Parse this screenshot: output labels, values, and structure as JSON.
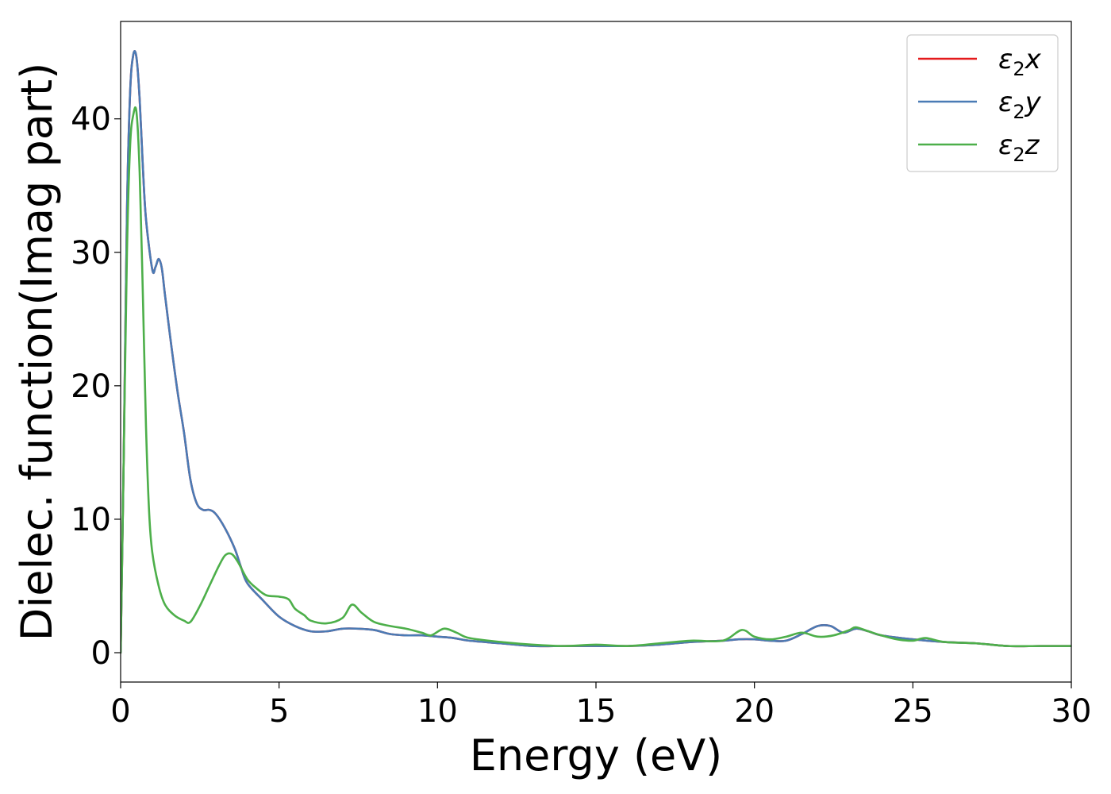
{
  "chart_data": {
    "type": "line",
    "xlabel": "Energy (eV)",
    "ylabel": "Dielec. function(Imag part)",
    "xlim": [
      0,
      30
    ],
    "ylim": [
      -2.2,
      47.3
    ],
    "xticks": [
      0,
      5,
      10,
      15,
      20,
      25,
      30
    ],
    "yticks": [
      0,
      10,
      20,
      30,
      40
    ],
    "grid": false,
    "legend_position": "top-right",
    "series": [
      {
        "name": "ε₂x",
        "legend_base": "ε",
        "legend_sub": "2",
        "legend_suffix": "x",
        "color": "#e41a1c",
        "x": [
          0,
          0.1,
          0.2,
          0.3,
          0.4,
          0.5,
          0.6,
          0.7,
          0.8,
          1.0,
          1.1,
          1.2,
          1.3,
          1.4,
          1.6,
          1.8,
          2.0,
          2.2,
          2.4,
          2.6,
          2.8,
          3.0,
          3.3,
          3.6,
          3.8,
          4.0,
          4.5,
          5.0,
          5.5,
          6.0,
          6.5,
          7.0,
          7.5,
          8.0,
          8.5,
          9.0,
          9.5,
          10.0,
          10.5,
          11.0,
          12.0,
          13.0,
          14.0,
          15.0,
          16.0,
          17.0,
          18.0,
          19.0,
          19.5,
          20.0,
          20.5,
          21.0,
          21.5,
          22.0,
          22.4,
          22.8,
          23.2,
          23.6,
          24.0,
          25.0,
          26.0,
          27.0,
          28.0,
          29.0,
          30.0
        ],
        "values": [
          0,
          15,
          33,
          42,
          44.8,
          44.6,
          41.5,
          36.5,
          32.5,
          28.7,
          28.9,
          29.5,
          28.8,
          26.8,
          23,
          19.5,
          16.5,
          13,
          11.2,
          10.7,
          10.7,
          10.4,
          9.3,
          7.8,
          6.4,
          5.2,
          3.9,
          2.7,
          2.0,
          1.6,
          1.6,
          1.8,
          1.8,
          1.7,
          1.4,
          1.3,
          1.3,
          1.2,
          1.1,
          0.9,
          0.7,
          0.5,
          0.5,
          0.5,
          0.5,
          0.6,
          0.8,
          0.9,
          1.0,
          1.0,
          0.9,
          0.9,
          1.4,
          2.0,
          2.0,
          1.5,
          1.8,
          1.6,
          1.3,
          1.0,
          0.8,
          0.7,
          0.5,
          0.5,
          0.5
        ]
      },
      {
        "name": "ε₂y",
        "legend_base": "ε",
        "legend_sub": "2",
        "legend_suffix": "y",
        "color": "#4a7bb5",
        "x": [
          0,
          0.1,
          0.2,
          0.3,
          0.4,
          0.5,
          0.6,
          0.7,
          0.8,
          1.0,
          1.1,
          1.2,
          1.3,
          1.4,
          1.6,
          1.8,
          2.0,
          2.2,
          2.4,
          2.6,
          2.8,
          3.0,
          3.3,
          3.6,
          3.8,
          4.0,
          4.5,
          5.0,
          5.5,
          6.0,
          6.5,
          7.0,
          7.5,
          8.0,
          8.5,
          9.0,
          9.5,
          10.0,
          10.5,
          11.0,
          12.0,
          13.0,
          14.0,
          15.0,
          16.0,
          17.0,
          18.0,
          19.0,
          19.5,
          20.0,
          20.5,
          21.0,
          21.5,
          22.0,
          22.4,
          22.8,
          23.2,
          23.6,
          24.0,
          25.0,
          26.0,
          27.0,
          28.0,
          29.0,
          30.0
        ],
        "values": [
          0,
          15,
          33,
          42,
          44.8,
          44.6,
          41.5,
          36.5,
          32.5,
          28.7,
          28.9,
          29.5,
          28.8,
          26.8,
          23,
          19.5,
          16.5,
          13,
          11.2,
          10.7,
          10.7,
          10.4,
          9.3,
          7.8,
          6.4,
          5.2,
          3.9,
          2.7,
          2.0,
          1.6,
          1.6,
          1.8,
          1.8,
          1.7,
          1.4,
          1.3,
          1.3,
          1.2,
          1.1,
          0.9,
          0.7,
          0.5,
          0.5,
          0.5,
          0.5,
          0.6,
          0.8,
          0.9,
          1.0,
          1.0,
          0.9,
          0.9,
          1.4,
          2.0,
          2.0,
          1.5,
          1.8,
          1.6,
          1.3,
          1.0,
          0.8,
          0.7,
          0.5,
          0.5,
          0.5
        ]
      },
      {
        "name": "ε₂z",
        "legend_base": "ε",
        "legend_sub": "2",
        "legend_suffix": "z",
        "color": "#4daf4a",
        "x": [
          0,
          0.1,
          0.2,
          0.3,
          0.4,
          0.5,
          0.6,
          0.7,
          0.8,
          0.9,
          1.0,
          1.2,
          1.4,
          1.7,
          2.0,
          2.2,
          2.5,
          2.8,
          3.1,
          3.3,
          3.5,
          3.7,
          4.0,
          4.3,
          4.6,
          5.0,
          5.3,
          5.5,
          5.8,
          6.0,
          6.5,
          7.0,
          7.3,
          7.6,
          8.0,
          8.5,
          9.0,
          9.5,
          9.8,
          10.2,
          10.6,
          11.0,
          12.0,
          13.0,
          14.0,
          15.0,
          16.0,
          17.0,
          18.0,
          19.0,
          19.6,
          20.0,
          20.5,
          21.0,
          21.5,
          22.0,
          22.5,
          23.0,
          23.2,
          23.6,
          24.0,
          24.5,
          25.0,
          25.4,
          26.0,
          27.0,
          28.0,
          29.0,
          30.0
        ],
        "values": [
          0,
          15,
          30,
          38,
          40.3,
          40.5,
          36,
          27,
          17,
          10.5,
          7.5,
          5,
          3.6,
          2.8,
          2.4,
          2.3,
          3.5,
          5.0,
          6.5,
          7.3,
          7.4,
          6.8,
          5.5,
          4.8,
          4.3,
          4.2,
          4.0,
          3.3,
          2.8,
          2.4,
          2.2,
          2.6,
          3.6,
          3.0,
          2.3,
          2.0,
          1.8,
          1.5,
          1.3,
          1.8,
          1.5,
          1.1,
          0.8,
          0.6,
          0.5,
          0.6,
          0.5,
          0.7,
          0.9,
          0.9,
          1.7,
          1.2,
          1.0,
          1.2,
          1.5,
          1.2,
          1.3,
          1.7,
          1.9,
          1.6,
          1.3,
          1.0,
          0.9,
          1.1,
          0.8,
          0.7,
          0.5,
          0.5,
          0.5
        ]
      }
    ]
  }
}
